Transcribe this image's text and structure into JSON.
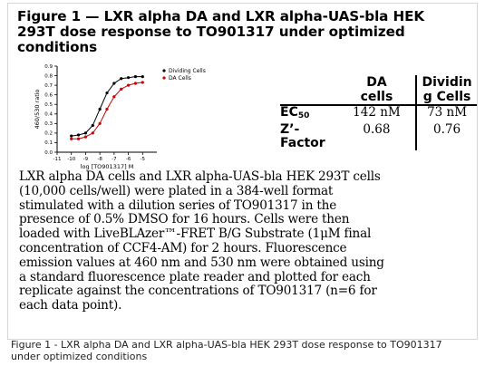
{
  "figure": {
    "title_lines": [
      "Figure 1 — LXR alpha DA and LXR alpha-UAS-bla HEK",
      "293T dose response to TO901317 under optimized",
      "conditions"
    ]
  },
  "chart_data": {
    "type": "scatter",
    "xlabel": "log [TO901317] M",
    "ylabel": "460/530 ratio",
    "xlim": [
      -11,
      -4
    ],
    "ylim": [
      0,
      0.9
    ],
    "xticks": [
      "-11",
      "-10",
      "-9",
      "-8",
      "-7",
      "-6",
      "-5"
    ],
    "yticks": [
      "0.0",
      "0.1",
      "0.2",
      "0.3",
      "0.4",
      "0.5",
      "0.6",
      "0.7",
      "0.8",
      "0.9"
    ],
    "legend_position": "top-right",
    "series": [
      {
        "name": "Dividing Cells",
        "color": "#000000",
        "x": [
          -10.0,
          -9.5,
          -9.0,
          -8.5,
          -8.0,
          -7.5,
          -7.0,
          -6.5,
          -6.0,
          -5.5,
          -5.0
        ],
        "y": [
          0.17,
          0.18,
          0.2,
          0.28,
          0.45,
          0.62,
          0.72,
          0.77,
          0.78,
          0.79,
          0.79
        ]
      },
      {
        "name": "DA Cells",
        "color": "#cc0000",
        "x": [
          -10.0,
          -9.5,
          -9.0,
          -8.5,
          -8.0,
          -7.5,
          -7.0,
          -6.5,
          -6.0,
          -5.5,
          -5.0
        ],
        "y": [
          0.14,
          0.14,
          0.16,
          0.2,
          0.3,
          0.45,
          0.58,
          0.66,
          0.7,
          0.72,
          0.73
        ]
      }
    ]
  },
  "stats_table": {
    "headers": [
      "DA cells",
      "Dividing Cells"
    ],
    "header_lines": [
      [
        "DA",
        "cells"
      ],
      [
        "Dividin",
        "g Cells"
      ]
    ],
    "rows": [
      {
        "label": "EC",
        "label_sub": "50",
        "da": "142 nM",
        "dividing": "73 nM"
      },
      {
        "label": "Z’-",
        "label_line2": "Factor",
        "da": "0.68",
        "dividing": "0.76"
      }
    ]
  },
  "description_lines": [
    "LXR alpha DA cells and LXR alpha-UAS-bla HEK 293T cells",
    "(10,000 cells/well) were plated in a 384-well format",
    "stimulated with a dilution series of TO901317 in the",
    "presence of 0.5% DMSO for 16 hours. Cells were then",
    "loaded with LiveBLAzer™-FRET B/G Substrate (1μM final",
    "concentration of CCF4-AM) for 2 hours. Fluorescence",
    "emission values at 460 nm and 530 nm were obtained using",
    "a standard fluorescence plate reader and plotted for each",
    "replicate against the concentrations of TO901317 (n=6 for",
    "each data point)."
  ],
  "caption_lines": [
    "Figure 1 - LXR alpha DA and LXR alpha-UAS-bla HEK 293T dose response to TO901317",
    "under optimized conditions"
  ]
}
